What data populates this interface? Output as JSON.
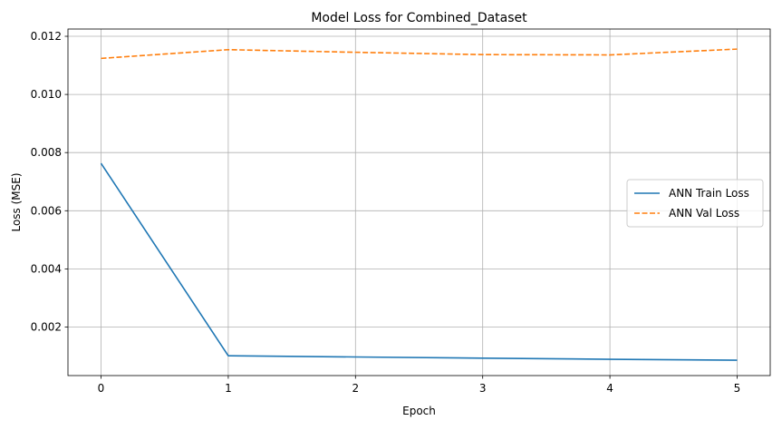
{
  "chart_data": {
    "type": "line",
    "title": "Model Loss for Combined_Dataset",
    "xlabel": "Epoch",
    "ylabel": "Loss (MSE)",
    "x": [
      0,
      1,
      2,
      3,
      4,
      5
    ],
    "xticks": [
      "0",
      "1",
      "2",
      "3",
      "4",
      "5"
    ],
    "yticks": [
      "0.002",
      "0.004",
      "0.006",
      "0.008",
      "0.010",
      "0.012"
    ],
    "xlim": [
      -0.26,
      5.26
    ],
    "ylim": [
      0.00033,
      0.01225
    ],
    "grid": true,
    "legend_position": "center-right",
    "series": [
      {
        "name": "ANN Train Loss",
        "values": [
          0.00763,
          0.00101,
          0.00097,
          0.00093,
          0.00089,
          0.00086
        ],
        "color": "#1f77b4",
        "style": "solid"
      },
      {
        "name": "ANN Val Loss",
        "values": [
          0.01124,
          0.01154,
          0.01145,
          0.01137,
          0.01136,
          0.01156
        ],
        "color": "#ff7f0e",
        "style": "dashed"
      }
    ]
  }
}
